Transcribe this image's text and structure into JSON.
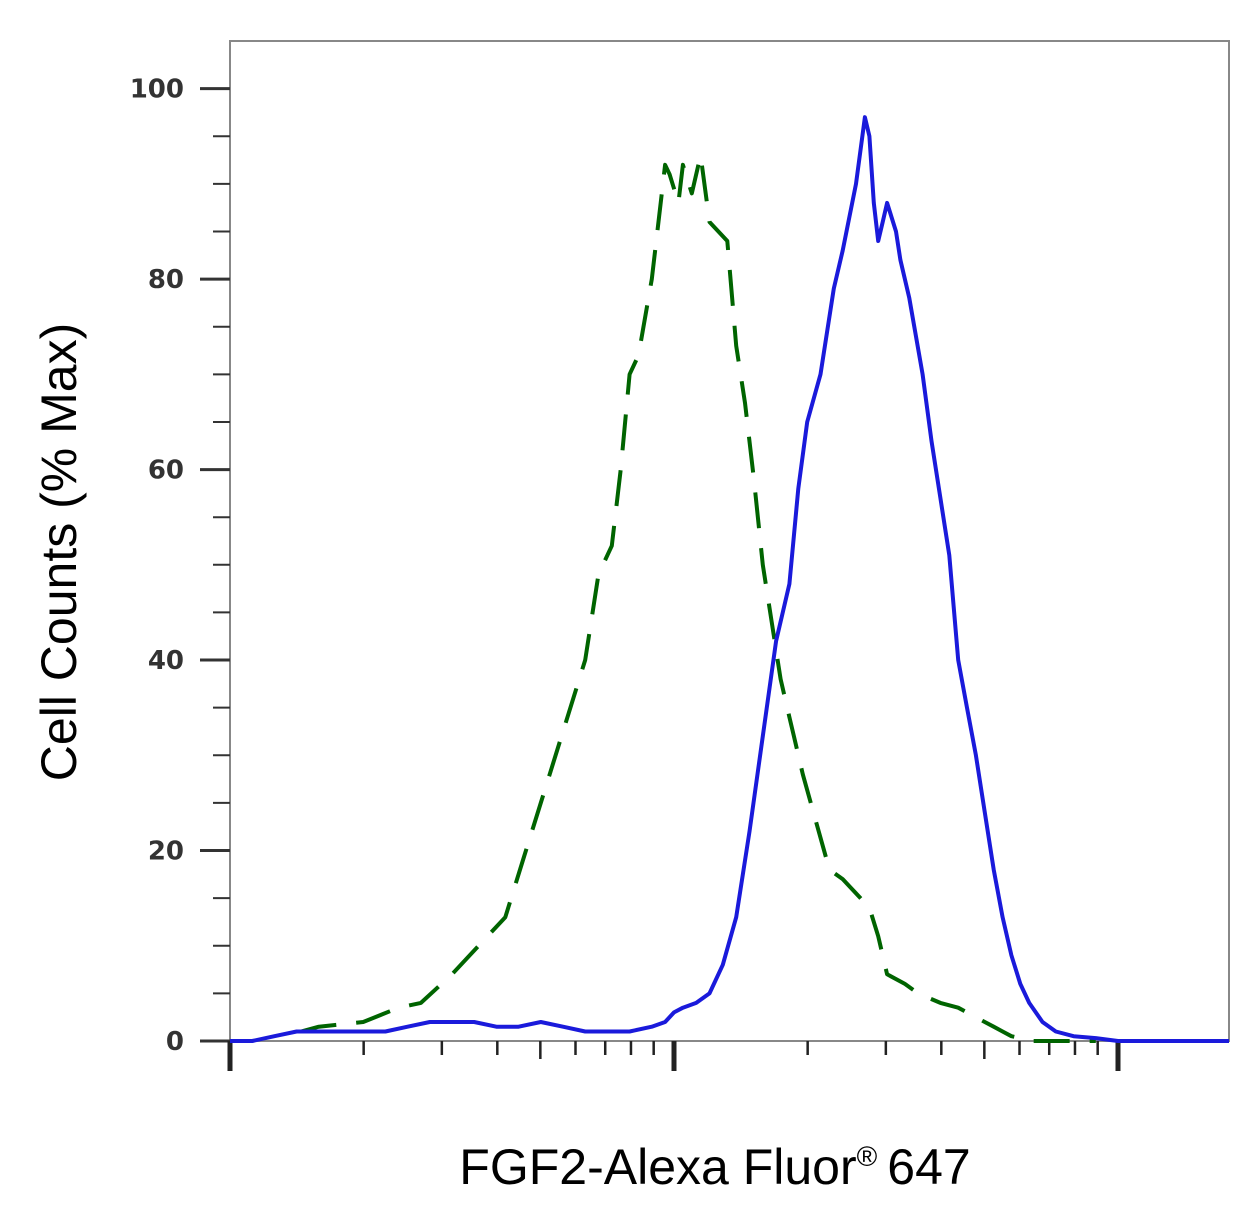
{
  "chart_data": {
    "type": "line",
    "title": "",
    "xlabel": "FGF2-Alexa Fluor",
    "xlabel_mark": "®",
    "xlabel_suffix": "647",
    "ylabel": "Cell Counts (% Max)",
    "ylim": [
      0,
      105
    ],
    "yticks": [
      0,
      20,
      40,
      60,
      80,
      100
    ],
    "xscale": "log",
    "xlim": [
      0,
      2.25
    ],
    "xticks_major": [
      0,
      1,
      2
    ],
    "grid": false,
    "legend": "none",
    "series": [
      {
        "style": "dashed",
        "color": "#006400",
        "x": [
          0.16,
          0.2,
          0.3,
          0.38,
          0.43,
          0.5,
          0.6,
          0.62,
          0.66,
          0.72,
          0.8,
          0.83,
          0.86,
          0.88,
          0.9,
          0.92,
          0.95,
          0.97,
          0.98,
          0.99,
          1.01,
          1.02,
          1.04,
          1.06,
          1.08,
          1.1,
          1.12,
          1.14,
          1.16,
          1.18,
          1.2,
          1.22,
          1.24,
          1.26,
          1.27,
          1.29,
          1.32,
          1.35,
          1.38,
          1.4,
          1.42,
          1.44,
          1.46,
          1.48,
          1.52,
          1.55,
          1.6,
          1.64,
          1.66,
          1.68,
          1.7,
          1.72,
          1.74,
          1.76,
          1.78,
          1.8,
          1.85,
          1.9,
          1.95
        ],
        "y": [
          1,
          1.5,
          2,
          3.5,
          4,
          7,
          12,
          13,
          19,
          28,
          40,
          49,
          52,
          60,
          70,
          72,
          80,
          88,
          92,
          91,
          88,
          92,
          89,
          93,
          86,
          85,
          84,
          73,
          67,
          59,
          50,
          44,
          38,
          34,
          32,
          28,
          23,
          18,
          17,
          16,
          15,
          14,
          11,
          7,
          6,
          5,
          4,
          3.5,
          3,
          2.5,
          2,
          1.5,
          1,
          0.5,
          0.3,
          0,
          0,
          0,
          0
        ]
      },
      {
        "style": "solid",
        "color": "#1a1adb",
        "x": [
          0,
          0.05,
          0.1,
          0.15,
          0.2,
          0.25,
          0.3,
          0.35,
          0.4,
          0.45,
          0.5,
          0.55,
          0.6,
          0.65,
          0.7,
          0.75,
          0.8,
          0.85,
          0.9,
          0.95,
          0.98,
          1.0,
          1.02,
          1.05,
          1.08,
          1.11,
          1.14,
          1.17,
          1.2,
          1.23,
          1.26,
          1.28,
          1.3,
          1.33,
          1.36,
          1.38,
          1.41,
          1.43,
          1.44,
          1.45,
          1.46,
          1.47,
          1.48,
          1.5,
          1.51,
          1.53,
          1.56,
          1.58,
          1.6,
          1.62,
          1.64,
          1.66,
          1.68,
          1.7,
          1.72,
          1.74,
          1.76,
          1.78,
          1.8,
          1.83,
          1.86,
          1.9,
          1.95,
          2.0,
          2.1,
          2.25
        ],
        "y": [
          0,
          0,
          0.5,
          1,
          1,
          1,
          1,
          1,
          1.5,
          2,
          2,
          2,
          1.5,
          1.5,
          2,
          1.5,
          1,
          1,
          1,
          1.5,
          2,
          3,
          3.5,
          4,
          5,
          8,
          13,
          22,
          32,
          42,
          48,
          58,
          65,
          70,
          79,
          83,
          90,
          97,
          95,
          88,
          84,
          86,
          88,
          85,
          82,
          78,
          70,
          63,
          57,
          51,
          40,
          35,
          30,
          24,
          18,
          13,
          9,
          6,
          4,
          2,
          1,
          0.5,
          0.3,
          0,
          0,
          0
        ]
      }
    ]
  }
}
